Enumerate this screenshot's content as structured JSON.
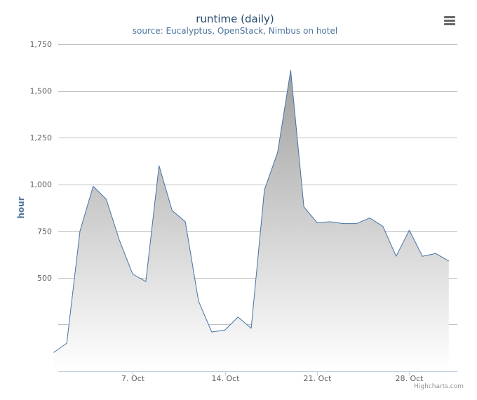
{
  "chart_data": {
    "type": "area",
    "title": "runtime (daily)",
    "subtitle": "source: Eucalyptus, OpenStack, Nimbus on hotel",
    "ylabel": "hour",
    "xlabel": "",
    "ylim": [
      0,
      1750
    ],
    "yticks": [
      {
        "value": 500,
        "label": "500"
      },
      {
        "value": 750,
        "label": "750"
      },
      {
        "value": 1000,
        "label": "1,000"
      },
      {
        "value": 1250,
        "label": "1,250"
      },
      {
        "value": 1500,
        "label": "1,500"
      },
      {
        "value": 1750,
        "label": "1,750"
      }
    ],
    "xticks": [
      {
        "day": 7,
        "label": "7. Oct"
      },
      {
        "day": 14,
        "label": "14. Oct"
      },
      {
        "day": 21,
        "label": "21. Oct"
      },
      {
        "day": 28,
        "label": "28. Oct"
      }
    ],
    "x_range": [
      1.35,
      31.65
    ],
    "grid": true,
    "series": [
      {
        "x": [
          1,
          2,
          3,
          4,
          5,
          6,
          7,
          8,
          9,
          10,
          11,
          12,
          13,
          14,
          15,
          16,
          17,
          18,
          19,
          20,
          21,
          22,
          23,
          24,
          25,
          26,
          27,
          28,
          29,
          30,
          31
        ],
        "values": [
          100,
          150,
          750,
          990,
          920,
          700,
          520,
          480,
          1100,
          860,
          800,
          375,
          210,
          220,
          290,
          230,
          970,
          1170,
          1610,
          880,
          795,
          800,
          790,
          790,
          820,
          775,
          615,
          755,
          615,
          630,
          590
        ]
      }
    ],
    "credits": "Highcharts.com",
    "colors": {
      "line": "#4572A7",
      "fill_top": "#a0a0a0",
      "fill_bottom": "#ffffff",
      "grid": "#c0c0c0"
    }
  }
}
